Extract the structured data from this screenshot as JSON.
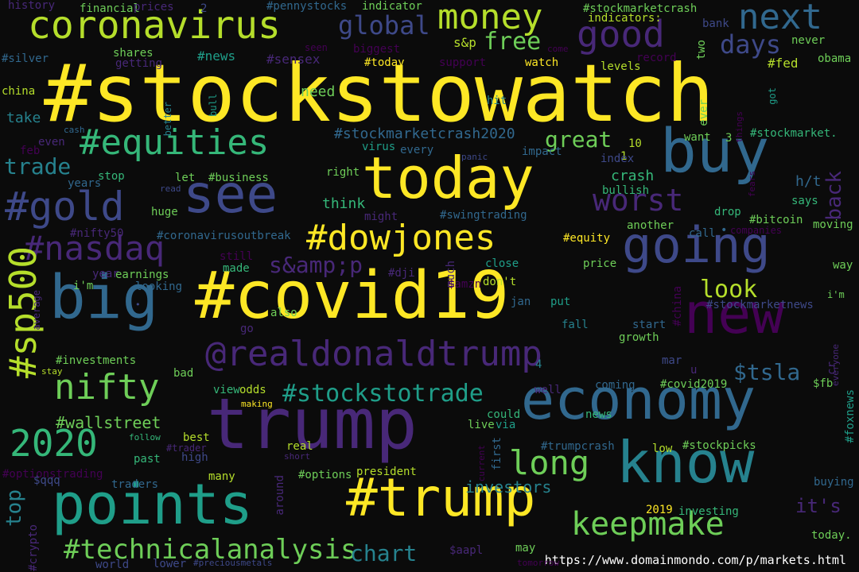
{
  "palette": [
    "#fde725",
    "#b5de2b",
    "#6ece58",
    "#35b779",
    "#1f9e89",
    "#26828e",
    "#31688e",
    "#3e4989",
    "#482878",
    "#440154"
  ],
  "words": [
    {
      "text": "#stockstowatch",
      "size": 100,
      "color": 0
    },
    {
      "text": "#covid19",
      "size": 82,
      "color": 0
    },
    {
      "text": "trump",
      "size": 88,
      "color": 8
    },
    {
      "text": "today",
      "size": 72,
      "color": 0
    },
    {
      "text": "buy",
      "size": 76,
      "color": 6
    },
    {
      "text": "see",
      "size": 66,
      "color": 7
    },
    {
      "text": "big",
      "size": 76,
      "color": 6
    },
    {
      "text": "economy",
      "size": 70,
      "color": 6
    },
    {
      "text": "know",
      "size": 72,
      "color": 5
    },
    {
      "text": "new",
      "size": 70,
      "color": 9
    },
    {
      "text": "going",
      "size": 62,
      "color": 7
    },
    {
      "text": "points",
      "size": 70,
      "color": 4
    },
    {
      "text": "#trump",
      "size": 66,
      "color": 0
    },
    {
      "text": "coronavirus",
      "size": 48,
      "color": 1
    },
    {
      "text": "money",
      "size": 44,
      "color": 1
    },
    {
      "text": "good",
      "size": 46,
      "color": 8
    },
    {
      "text": "next",
      "size": 44,
      "color": 6
    },
    {
      "text": "#equities",
      "size": 44,
      "color": 3
    },
    {
      "text": "#gold",
      "size": 50,
      "color": 7
    },
    {
      "text": "#dowjones",
      "size": 44,
      "color": 0
    },
    {
      "text": "#nasdaq",
      "size": 42,
      "color": 8
    },
    {
      "text": "@realdonaldtrump",
      "size": 44,
      "color": 8
    },
    {
      "text": "nifty",
      "size": 44,
      "color": 2
    },
    {
      "text": "2020",
      "size": 46,
      "color": 3
    },
    {
      "text": "#sp500",
      "size": 46,
      "color": 1
    },
    {
      "text": "#stockstotrade",
      "size": 30,
      "color": 4
    },
    {
      "text": "#technicalanalysis",
      "size": 34,
      "color": 2
    },
    {
      "text": "keepmake",
      "size": 40,
      "color": 2
    },
    {
      "text": "long",
      "size": 42,
      "color": 2
    },
    {
      "text": "worst",
      "size": 38,
      "color": 8
    },
    {
      "text": "global",
      "size": 32,
      "color": 7
    },
    {
      "text": "free",
      "size": 30,
      "color": 2
    },
    {
      "text": "days",
      "size": 32,
      "color": 7
    },
    {
      "text": "great",
      "size": 28,
      "color": 2
    },
    {
      "text": "trade",
      "size": 28,
      "color": 5
    },
    {
      "text": "look",
      "size": 30,
      "color": 1
    },
    {
      "text": "$tsla",
      "size": 28,
      "color": 6
    },
    {
      "text": "s&amp;p",
      "size": 28,
      "color": 8
    },
    {
      "text": "chart",
      "size": 28,
      "color": 5
    },
    {
      "text": "top",
      "size": 26,
      "color": 5
    },
    {
      "text": "back",
      "size": 26,
      "color": 8
    },
    {
      "text": "it's",
      "size": 24,
      "color": 8
    },
    {
      "text": "#wallstreet",
      "size": 20,
      "color": 2
    },
    {
      "text": "investors",
      "size": 20,
      "color": 5
    },
    {
      "text": "#stockmarketcrash2020",
      "size": 18,
      "color": 6
    },
    {
      "text": "think",
      "size": 18,
      "color": 3
    },
    {
      "text": "crash",
      "size": 18,
      "color": 3
    },
    {
      "text": "h/t",
      "size": 18,
      "color": 6
    },
    {
      "text": "need",
      "size": 18,
      "color": 2
    },
    {
      "text": "take",
      "size": 18,
      "color": 5
    },
    {
      "text": "#news",
      "size": 16,
      "color": 4
    },
    {
      "text": "#sensex",
      "size": 16,
      "color": 8
    },
    {
      "text": "s&p",
      "size": 16,
      "color": 1
    },
    {
      "text": "#today",
      "size": 14,
      "color": 0
    },
    {
      "text": "support",
      "size": 14,
      "color": 9
    },
    {
      "text": "watch",
      "size": 14,
      "color": 0
    },
    {
      "text": "levels",
      "size": 14,
      "color": 1
    },
    {
      "text": "record",
      "size": 14,
      "color": 9
    },
    {
      "text": "#fed",
      "size": 16,
      "color": 1
    },
    {
      "text": "obama",
      "size": 14,
      "color": 2
    },
    {
      "text": "#pennystocks",
      "size": 14,
      "color": 6
    },
    {
      "text": "indicator",
      "size": 14,
      "color": 2
    },
    {
      "text": "#stockmarketcrash",
      "size": 14,
      "color": 2
    },
    {
      "text": "indicators:",
      "size": 14,
      "color": 1
    },
    {
      "text": "history",
      "size": 14,
      "color": 8
    },
    {
      "text": "financial",
      "size": 14,
      "color": 2
    },
    {
      "text": "prices",
      "size": 14,
      "color": 8
    },
    {
      "text": "2",
      "size": 14,
      "color": 7
    },
    {
      "text": "#silver",
      "size": 14,
      "color": 6
    },
    {
      "text": "shares",
      "size": 14,
      "color": 2
    },
    {
      "text": "getting",
      "size": 14,
      "color": 8
    },
    {
      "text": "seen",
      "size": 12,
      "color": 9
    },
    {
      "text": "biggest",
      "size": 14,
      "color": 9
    },
    {
      "text": "come",
      "size": 11,
      "color": 9
    },
    {
      "text": "bank",
      "size": 14,
      "color": 7
    },
    {
      "text": "two",
      "size": 14,
      "color": 2
    },
    {
      "text": "never",
      "size": 14,
      "color": 2
    },
    {
      "text": "china",
      "size": 14,
      "color": 1
    },
    {
      "text": "bull",
      "size": 12,
      "color": 4
    },
    {
      "text": "better",
      "size": 12,
      "color": 5
    },
    {
      "text": "hit",
      "size": 14,
      "color": 5
    },
    {
      "text": "got",
      "size": 12,
      "color": 4
    },
    {
      "text": "ever",
      "size": 14,
      "color": 2
    },
    {
      "text": "things",
      "size": 11,
      "color": 9
    },
    {
      "text": "cash",
      "size": 11,
      "color": 6
    },
    {
      "text": "even",
      "size": 14,
      "color": 8
    },
    {
      "text": "feb",
      "size": 14,
      "color": 9
    },
    {
      "text": "virus",
      "size": 14,
      "color": 4
    },
    {
      "text": "every",
      "size": 14,
      "color": 6
    },
    {
      "text": "panic",
      "size": 11,
      "color": 7
    },
    {
      "text": "impact",
      "size": 14,
      "color": 6
    },
    {
      "text": "10",
      "size": 14,
      "color": 1
    },
    {
      "text": "1",
      "size": 14,
      "color": 1
    },
    {
      "text": "want",
      "size": 14,
      "color": 2
    },
    {
      "text": "3",
      "size": 14,
      "color": 2
    },
    {
      "text": "#stockmarket.",
      "size": 14,
      "color": 3
    },
    {
      "text": "index",
      "size": 14,
      "color": 7
    },
    {
      "text": "stop",
      "size": 14,
      "color": 3
    },
    {
      "text": "let",
      "size": 14,
      "color": 2
    },
    {
      "text": "#business",
      "size": 14,
      "color": 2
    },
    {
      "text": "right",
      "size": 14,
      "color": 2
    },
    {
      "text": "years",
      "size": 14,
      "color": 6
    },
    {
      "text": "read",
      "size": 11,
      "color": 7
    },
    {
      "text": "bullish",
      "size": 14,
      "color": 3
    },
    {
      "text": "fears",
      "size": 11,
      "color": 9
    },
    {
      "text": "says",
      "size": 14,
      "color": 3
    },
    {
      "text": "huge",
      "size": 14,
      "color": 2
    },
    {
      "text": "might",
      "size": 14,
      "color": 8
    },
    {
      "text": "#swingtrading",
      "size": 14,
      "color": 6
    },
    {
      "text": "drop",
      "size": 14,
      "color": 3
    },
    {
      "text": "#bitcoin",
      "size": 14,
      "color": 2
    },
    {
      "text": "another",
      "size": 14,
      "color": 2
    },
    {
      "text": "#nifty50",
      "size": 14,
      "color": 8
    },
    {
      "text": "#coronavirusoutbreak",
      "size": 14,
      "color": 6
    },
    {
      "text": "call",
      "size": 14,
      "color": 6
    },
    {
      "text": "companies",
      "size": 12,
      "color": 9
    },
    {
      "text": "moving",
      "size": 14,
      "color": 2
    },
    {
      "text": "#equity",
      "size": 14,
      "color": 0
    },
    {
      "text": "still",
      "size": 14,
      "color": 9
    },
    {
      "text": "made",
      "size": 14,
      "color": 3
    },
    {
      "text": "#dji",
      "size": 14,
      "color": 8
    },
    {
      "text": "much",
      "size": 14,
      "color": 8
    },
    {
      "text": "close",
      "size": 14,
      "color": 4
    },
    {
      "text": "price",
      "size": 14,
      "color": 2
    },
    {
      "text": "way",
      "size": 14,
      "color": 2
    },
    {
      "text": "year",
      "size": 14,
      "color": 8
    },
    {
      "text": "earnings",
      "size": 14,
      "color": 2
    },
    {
      "text": "don't",
      "size": 14,
      "color": 1
    },
    {
      "text": "$amzn",
      "size": 14,
      "color": 9
    },
    {
      "text": "i'm",
      "size": 14,
      "color": 2
    },
    {
      "text": "looking",
      "size": 14,
      "color": 6
    },
    {
      "text": "jan",
      "size": 14,
      "color": 6
    },
    {
      "text": "put",
      "size": 14,
      "color": 4
    },
    {
      "text": "#stockmarketnews",
      "size": 14,
      "color": 7
    },
    {
      "text": "i'm",
      "size": 12,
      "color": 2
    },
    {
      "text": "average",
      "size": 12,
      "color": 8
    },
    {
      "text": "also",
      "size": 14,
      "color": 2
    },
    {
      "text": "#china",
      "size": 14,
      "color": 9
    },
    {
      "text": "fall",
      "size": 14,
      "color": 5
    },
    {
      "text": "go",
      "size": 14,
      "color": 8
    },
    {
      "text": "start",
      "size": 14,
      "color": 6
    },
    {
      "text": "growth",
      "size": 14,
      "color": 2
    },
    {
      "text": "#investments",
      "size": 14,
      "color": 2
    },
    {
      "text": "mar",
      "size": 14,
      "color": 7
    },
    {
      "text": "4",
      "size": 14,
      "color": 5
    },
    {
      "text": "cr",
      "size": 14,
      "color": 8
    },
    {
      "text": "everyone",
      "size": 11,
      "color": 8
    },
    {
      "text": "stay",
      "size": 11,
      "color": 1
    },
    {
      "text": "bad",
      "size": 14,
      "color": 2
    },
    {
      "text": "u",
      "size": 14,
      "color": 8
    },
    {
      "text": "coming",
      "size": 14,
      "color": 6
    },
    {
      "text": "#covid2019",
      "size": 14,
      "color": 2
    },
    {
      "text": "$fb",
      "size": 14,
      "color": 2
    },
    {
      "text": "view",
      "size": 14,
      "color": 3
    },
    {
      "text": "odds",
      "size": 14,
      "color": 1
    },
    {
      "text": "well",
      "size": 14,
      "color": 8
    },
    {
      "text": "#foxnews",
      "size": 14,
      "color": 4
    },
    {
      "text": "making",
      "size": 11,
      "color": 0
    },
    {
      "text": "could",
      "size": 14,
      "color": 3
    },
    {
      "text": "news",
      "size": 14,
      "color": 3
    },
    {
      "text": "follow",
      "size": 11,
      "color": 3
    },
    {
      "text": "best",
      "size": 14,
      "color": 1
    },
    {
      "text": "#trader",
      "size": 12,
      "color": 8
    },
    {
      "text": "live",
      "size": 14,
      "color": 2
    },
    {
      "text": "via",
      "size": 14,
      "color": 4
    },
    {
      "text": "#trumpcrash",
      "size": 14,
      "color": 6
    },
    {
      "text": "past",
      "size": 14,
      "color": 3
    },
    {
      "text": "high",
      "size": 14,
      "color": 7
    },
    {
      "text": "real",
      "size": 14,
      "color": 1
    },
    {
      "text": "short",
      "size": 11,
      "color": 8
    },
    {
      "text": "current",
      "size": 11,
      "color": 9
    },
    {
      "text": "first",
      "size": 14,
      "color": 6
    },
    {
      "text": "low",
      "size": 14,
      "color": 1
    },
    {
      "text": "#stockpicks",
      "size": 14,
      "color": 2
    },
    {
      "text": "#optionstrading",
      "size": 14,
      "color": 9
    },
    {
      "text": "$qqq",
      "size": 14,
      "color": 7
    },
    {
      "text": "many",
      "size": 14,
      "color": 1
    },
    {
      "text": "#options",
      "size": 14,
      "color": 2
    },
    {
      "text": "president",
      "size": 14,
      "color": 1
    },
    {
      "text": "traders",
      "size": 14,
      "color": 6
    },
    {
      "text": "around",
      "size": 14,
      "color": 8
    },
    {
      "text": "buying",
      "size": 14,
      "color": 6
    },
    {
      "text": "2019",
      "size": 14,
      "color": 0
    },
    {
      "text": "investing",
      "size": 14,
      "color": 3
    },
    {
      "text": "#crypto",
      "size": 14,
      "color": 8
    },
    {
      "text": "$aapl",
      "size": 14,
      "color": 8
    },
    {
      "text": "may",
      "size": 14,
      "color": 2
    },
    {
      "text": "today.",
      "size": 14,
      "color": 2
    },
    {
      "text": "world",
      "size": 14,
      "color": 7
    },
    {
      "text": "lower",
      "size": 14,
      "color": 7
    },
    {
      "text": "#preciousmetals",
      "size": 11,
      "color": 7
    },
    {
      "text": "tomorrow",
      "size": 11,
      "color": 9
    },
    {
      "text": "•",
      "size": 14,
      "color": 6
    },
    {
      "text": "•",
      "size": 11,
      "color": 7
    }
  ],
  "footer": {
    "source_url": "https://www.domainmondo.com/p/markets.html"
  }
}
